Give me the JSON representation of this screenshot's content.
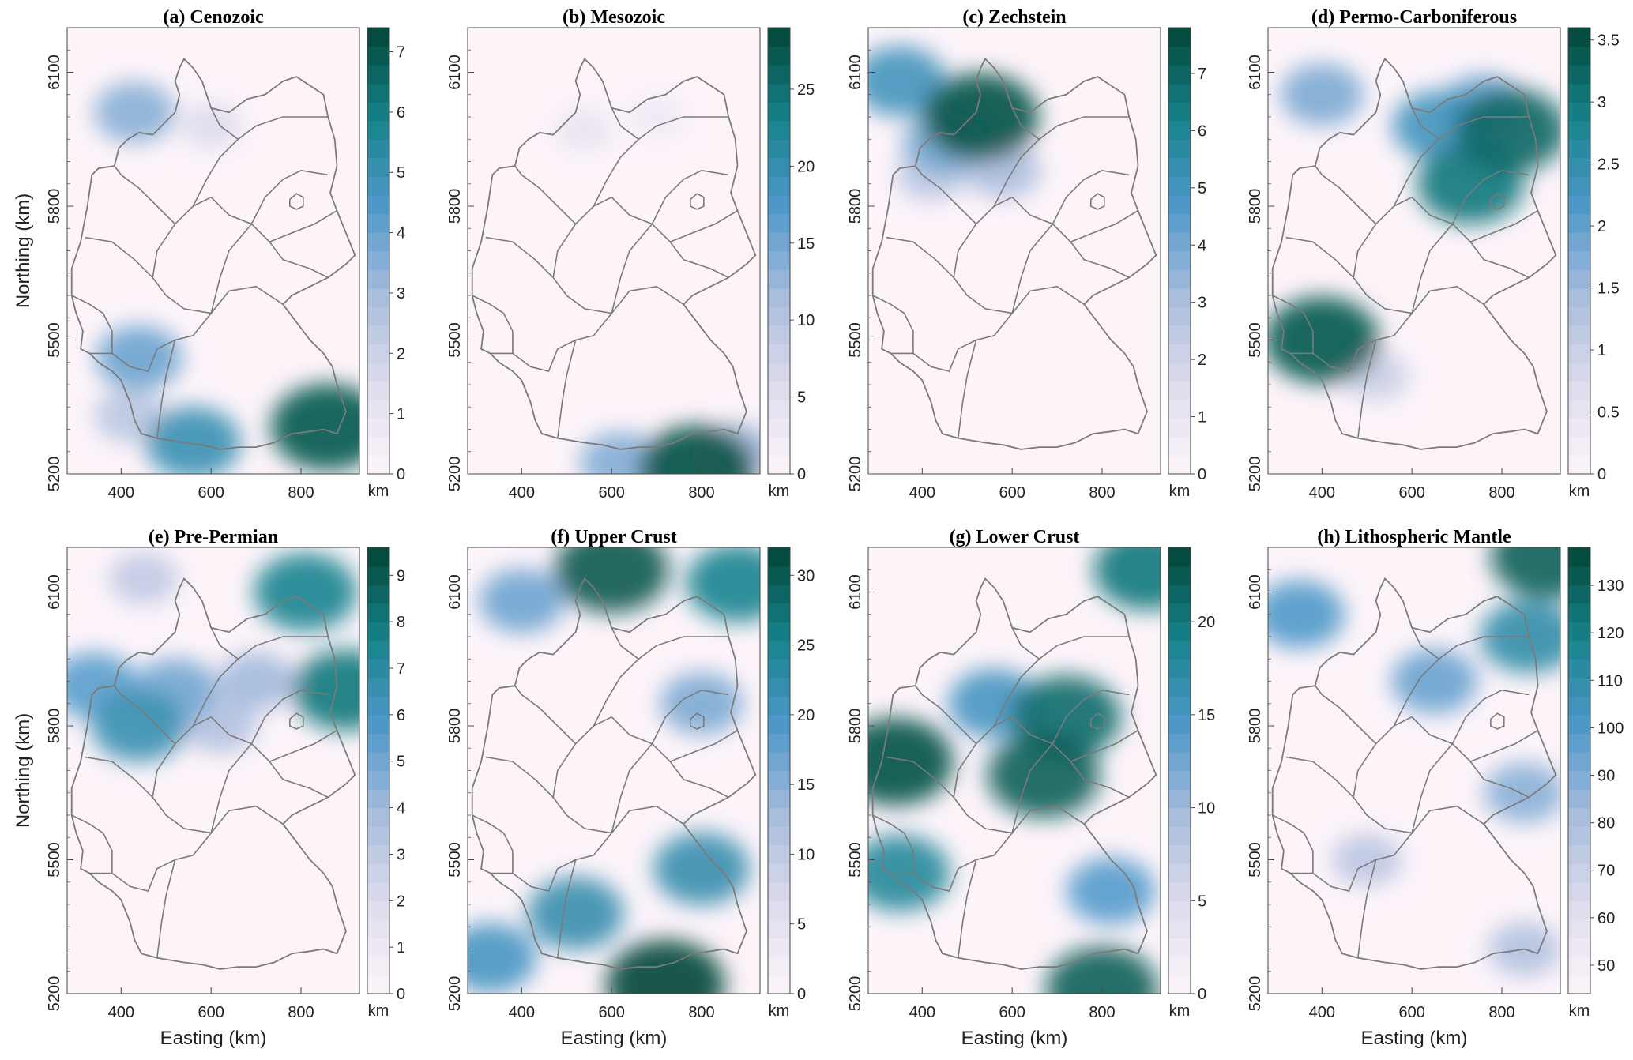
{
  "chart_data": [
    {
      "type": "heatmap",
      "title": "(a) Cenozoic",
      "xlabel": "",
      "ylabel": "Northing (km)",
      "xlim": [
        280,
        930
      ],
      "ylim": [
        5200,
        6200
      ],
      "x_ticks": [
        "400",
        "600",
        "800"
      ],
      "y_ticks": [
        "5200",
        "5500",
        "5800",
        "6100"
      ],
      "colorbar": {
        "label": "km",
        "range": [
          0,
          7.4
        ],
        "ticks": [
          "0",
          "1",
          "2",
          "3",
          "4",
          "5",
          "6",
          "7"
        ]
      },
      "hotspots": [
        {
          "x": 560,
          "y": 5270,
          "value": 5
        },
        {
          "x": 860,
          "y": 5305,
          "value": 7
        },
        {
          "x": 440,
          "y": 5460,
          "value": 4
        },
        {
          "x": 420,
          "y": 5330,
          "value": 2.5
        },
        {
          "x": 430,
          "y": 6010,
          "value": 3.5
        },
        {
          "x": 600,
          "y": 5980,
          "value": 1.5
        }
      ]
    },
    {
      "type": "heatmap",
      "title": "(b) Mesozoic",
      "xlabel": "",
      "ylabel": "",
      "xlim": [
        280,
        930
      ],
      "ylim": [
        5200,
        6200
      ],
      "x_ticks": [
        "400",
        "600",
        "800"
      ],
      "y_ticks": [
        "5200",
        "5500",
        "5800",
        "6100"
      ],
      "colorbar": {
        "label": "km",
        "range": [
          0,
          29
        ],
        "ticks": [
          "0",
          "5",
          "10",
          "15",
          "20",
          "25"
        ]
      },
      "hotspots": [
        {
          "x": 790,
          "y": 5210,
          "value": 28
        },
        {
          "x": 620,
          "y": 5225,
          "value": 14
        },
        {
          "x": 880,
          "y": 5250,
          "value": 12
        },
        {
          "x": 540,
          "y": 5970,
          "value": 4
        },
        {
          "x": 700,
          "y": 6000,
          "value": 3
        }
      ]
    },
    {
      "type": "heatmap",
      "title": "(c) Zechstein",
      "xlabel": "",
      "ylabel": "",
      "xlim": [
        280,
        930
      ],
      "ylim": [
        5200,
        6200
      ],
      "x_ticks": [
        "400",
        "600",
        "800"
      ],
      "y_ticks": [
        "5200",
        "5500",
        "5800",
        "6100"
      ],
      "colorbar": {
        "label": "km",
        "range": [
          0,
          7.8
        ],
        "ticks": [
          "0",
          "1",
          "2",
          "3",
          "4",
          "5",
          "6",
          "7"
        ]
      },
      "hotspots": [
        {
          "x": 530,
          "y": 6000,
          "value": 7.5
        },
        {
          "x": 350,
          "y": 6080,
          "value": 5
        },
        {
          "x": 450,
          "y": 5940,
          "value": 4
        },
        {
          "x": 580,
          "y": 5880,
          "value": 3
        },
        {
          "x": 420,
          "y": 5870,
          "value": 2.5
        }
      ]
    },
    {
      "type": "heatmap",
      "title": "(d) Permo-Carboniferous",
      "xlabel": "",
      "ylabel": "",
      "xlim": [
        280,
        930
      ],
      "ylim": [
        5200,
        6200
      ],
      "x_ticks": [
        "400",
        "600",
        "800"
      ],
      "y_ticks": [
        "5200",
        "5500",
        "5800",
        "6100"
      ],
      "colorbar": {
        "label": "km",
        "range": [
          0,
          3.6
        ],
        "ticks": [
          "0",
          "0.5",
          "1",
          "1.5",
          "2",
          "2.5",
          "3",
          "3.5"
        ]
      },
      "hotspots": [
        {
          "x": 400,
          "y": 5500,
          "value": 3.4
        },
        {
          "x": 820,
          "y": 5970,
          "value": 3.2
        },
        {
          "x": 730,
          "y": 5850,
          "value": 3
        },
        {
          "x": 660,
          "y": 5980,
          "value": 2.3
        },
        {
          "x": 400,
          "y": 6050,
          "value": 1.8
        },
        {
          "x": 760,
          "y": 6020,
          "value": 2
        },
        {
          "x": 520,
          "y": 5420,
          "value": 1
        }
      ]
    },
    {
      "type": "heatmap",
      "title": "(e) Pre-Permian",
      "xlabel": "Easting (km)",
      "ylabel": "Northing (km)",
      "xlim": [
        280,
        930
      ],
      "ylim": [
        5200,
        6200
      ],
      "x_ticks": [
        "400",
        "600",
        "800"
      ],
      "y_ticks": [
        "5200",
        "5500",
        "5800",
        "6100"
      ],
      "colorbar": {
        "label": "km",
        "range": [
          0,
          9.6
        ],
        "ticks": [
          "0",
          "1",
          "2",
          "3",
          "4",
          "5",
          "6",
          "7",
          "8",
          "9"
        ]
      },
      "hotspots": [
        {
          "x": 900,
          "y": 5880,
          "value": 8
        },
        {
          "x": 810,
          "y": 6100,
          "value": 7.5
        },
        {
          "x": 440,
          "y": 5800,
          "value": 6.5
        },
        {
          "x": 340,
          "y": 5890,
          "value": 5.5
        },
        {
          "x": 520,
          "y": 5880,
          "value": 5
        },
        {
          "x": 700,
          "y": 5900,
          "value": 4
        },
        {
          "x": 620,
          "y": 5800,
          "value": 3.5
        },
        {
          "x": 450,
          "y": 6130,
          "value": 3
        }
      ]
    },
    {
      "type": "heatmap",
      "title": "(f) Upper Crust",
      "xlabel": "Easting (km)",
      "ylabel": "",
      "xlim": [
        280,
        930
      ],
      "ylim": [
        5200,
        6200
      ],
      "x_ticks": [
        "400",
        "600",
        "800"
      ],
      "y_ticks": [
        "5200",
        "5500",
        "5800",
        "6100"
      ],
      "colorbar": {
        "label": "km",
        "range": [
          0,
          32
        ],
        "ticks": [
          "0",
          "5",
          "10",
          "15",
          "20",
          "25",
          "30"
        ]
      },
      "hotspots": [
        {
          "x": 600,
          "y": 6150,
          "value": 30
        },
        {
          "x": 720,
          "y": 5220,
          "value": 32
        },
        {
          "x": 880,
          "y": 6120,
          "value": 25
        },
        {
          "x": 520,
          "y": 5380,
          "value": 22
        },
        {
          "x": 800,
          "y": 5480,
          "value": 22
        },
        {
          "x": 330,
          "y": 5280,
          "value": 20
        },
        {
          "x": 400,
          "y": 6080,
          "value": 17
        },
        {
          "x": 800,
          "y": 5850,
          "value": 16
        }
      ]
    },
    {
      "type": "heatmap",
      "title": "(g) Lower Crust",
      "xlabel": "Easting (km)",
      "ylabel": "",
      "xlim": [
        280,
        930
      ],
      "ylim": [
        5200,
        6200
      ],
      "x_ticks": [
        "400",
        "600",
        "800"
      ],
      "y_ticks": [
        "5200",
        "5500",
        "5800",
        "6100"
      ],
      "colorbar": {
        "label": "km",
        "range": [
          0,
          24
        ],
        "ticks": [
          "0",
          "5",
          "10",
          "15",
          "20"
        ]
      },
      "hotspots": [
        {
          "x": 340,
          "y": 5720,
          "value": 23
        },
        {
          "x": 670,
          "y": 5690,
          "value": 22
        },
        {
          "x": 720,
          "y": 5820,
          "value": 21
        },
        {
          "x": 900,
          "y": 6150,
          "value": 20
        },
        {
          "x": 800,
          "y": 5210,
          "value": 22
        },
        {
          "x": 560,
          "y": 5850,
          "value": 15
        },
        {
          "x": 350,
          "y": 5470,
          "value": 18
        },
        {
          "x": 820,
          "y": 5430,
          "value": 14
        }
      ]
    },
    {
      "type": "heatmap",
      "title": "(h) Lithospheric Mantle",
      "xlabel": "Easting (km)",
      "ylabel": "",
      "xlim": [
        280,
        930
      ],
      "ylim": [
        5200,
        6200
      ],
      "x_ticks": [
        "400",
        "600",
        "800"
      ],
      "y_ticks": [
        "5200",
        "5500",
        "5800",
        "6100"
      ],
      "colorbar": {
        "label": "km",
        "range": [
          44,
          138
        ],
        "ticks": [
          "50",
          "60",
          "70",
          "80",
          "90",
          "100",
          "110",
          "120",
          "130"
        ]
      },
      "hotspots": [
        {
          "x": 900,
          "y": 6180,
          "value": 130
        },
        {
          "x": 860,
          "y": 6000,
          "value": 110
        },
        {
          "x": 350,
          "y": 6050,
          "value": 100
        },
        {
          "x": 650,
          "y": 5900,
          "value": 95
        },
        {
          "x": 850,
          "y": 5650,
          "value": 88
        },
        {
          "x": 500,
          "y": 5500,
          "value": 75
        },
        {
          "x": 850,
          "y": 5300,
          "value": 78
        }
      ]
    }
  ]
}
